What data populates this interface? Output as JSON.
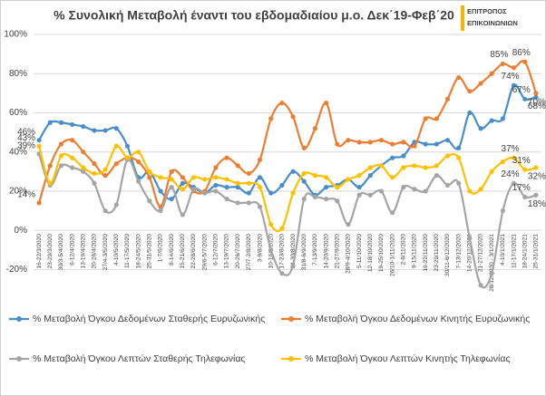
{
  "chart_data": {
    "type": "line",
    "title": "% Συνολική Μεταβολή έναντι του εβδομαδιαίου μ.ο. Δεκ΄19-Φεβ΄20",
    "logo": {
      "line1": "ΕΠΙΤΡΟΠΟΣ",
      "line2": "ΕΠΙΚΟΙΝΩΝΙΩΝ"
    },
    "categories": [
      "16-22/3/2020",
      "23-29/3/2020",
      "30/3-5/4/2020",
      "6-12/4/2020",
      "13-19/4/2020",
      "20-26/4/2020",
      "27/4-3/5/2020",
      "4-10/5/2020",
      "11-17/5/2020",
      "18-24/5/2020",
      "25-31/5/2020",
      "1-7/6/2020",
      "8-14/6/2020",
      "15-21/6/2020",
      "22-28/6/2020",
      "29/6-5/7/2020",
      "6-12/7/2020",
      "13-19/7/2020",
      "20-26/7/2020",
      "27/7-2/8/2020",
      "3-9/8/2020",
      "10-16/8/2020",
      "17-23/8/2020",
      "24-30/8/2020",
      "31/8-6/9/2020",
      "7-13/9/2020",
      "14-20/9/2020",
      "21-27/9/2020",
      "28/9-4/10/2020",
      "5-11/10/2020",
      "12-18/10/2020",
      "19-25/10/2020",
      "26/10-1/11/2020",
      "2-8/11/2020",
      "9-15/11/2020",
      "16-22/11/2020",
      "23-29/11/2020",
      "30/11-6/12/2020",
      "7-13/12/2020",
      "14-20/12/2020",
      "21-27/12/2020",
      "28/12/2020 - 3/1/2021",
      "4-10/1/2021",
      "11-17/1/2021",
      "18-24/1/2021",
      "25-31/1/2021"
    ],
    "series": [
      {
        "name": "% Μεταβολή Όγκου Δεδομένων Σταθερής Ευρυζωνικής",
        "color": "#4a8ec9",
        "values": [
          46,
          55,
          55,
          54,
          53,
          51,
          51,
          52,
          43,
          27,
          30,
          20,
          16,
          24,
          22,
          19,
          23,
          22,
          22,
          19,
          27,
          19,
          23,
          30,
          25,
          18,
          22,
          23,
          26,
          22,
          28,
          33,
          37,
          38,
          45,
          44,
          44,
          46,
          42,
          60,
          52,
          56,
          57,
          74,
          67,
          68
        ],
        "value_labels": [
          "46%",
          null,
          null,
          null,
          null,
          null,
          null,
          null,
          null,
          null,
          null,
          null,
          null,
          null,
          null,
          null,
          null,
          null,
          null,
          null,
          null,
          null,
          null,
          null,
          null,
          null,
          null,
          null,
          null,
          null,
          null,
          null,
          null,
          null,
          null,
          null,
          null,
          null,
          null,
          null,
          null,
          null,
          null,
          "74%",
          "67%",
          "68%"
        ]
      },
      {
        "name": "% Μεταβολή Όγκου Δεδομένων Κινητής Ευρυζωνικής",
        "color": "#ed7d31",
        "values": [
          14,
          33,
          44,
          46,
          40,
          34,
          28,
          34,
          37,
          35,
          27,
          12,
          30,
          27,
          20,
          20,
          32,
          37,
          33,
          29,
          36,
          57,
          65,
          58,
          42,
          52,
          65,
          44,
          46,
          45,
          45,
          46,
          44,
          45,
          43,
          57,
          57,
          67,
          78,
          71,
          75,
          80,
          85,
          83,
          86,
          70
        ],
        "value_labels": [
          "14%",
          null,
          null,
          null,
          null,
          null,
          null,
          null,
          null,
          null,
          null,
          null,
          null,
          null,
          null,
          null,
          null,
          null,
          null,
          null,
          null,
          null,
          null,
          null,
          null,
          null,
          null,
          null,
          null,
          null,
          null,
          null,
          null,
          null,
          null,
          null,
          null,
          null,
          null,
          null,
          null,
          null,
          "85%",
          null,
          "86%",
          "70%"
        ]
      },
      {
        "name": "% Μεταβολή Όγκου Λεπτών Σταθερής Τηλεφωνίας",
        "color": "#a5a5a5",
        "values": [
          39,
          23,
          33,
          32,
          30,
          24,
          10,
          13,
          36,
          25,
          15,
          10,
          22,
          8,
          21,
          19,
          20,
          16,
          14,
          14,
          12,
          -10,
          -22,
          -18,
          16,
          17,
          16,
          15,
          3,
          18,
          18,
          20,
          9,
          22,
          21,
          20,
          28,
          23,
          24,
          -4,
          -28,
          -22,
          10,
          24,
          17,
          18
        ],
        "value_labels": [
          "39%",
          null,
          null,
          null,
          null,
          null,
          null,
          null,
          null,
          null,
          null,
          null,
          null,
          null,
          null,
          null,
          null,
          null,
          null,
          null,
          null,
          null,
          null,
          null,
          null,
          null,
          null,
          null,
          null,
          null,
          null,
          null,
          null,
          null,
          null,
          null,
          null,
          null,
          null,
          null,
          null,
          null,
          null,
          "24%",
          "17%",
          "18%"
        ]
      },
      {
        "name": "% Μεταβολή Όγκου Λεπτών Κινητής Τηλεφωνίας",
        "color": "#ffc000",
        "values": [
          43,
          24,
          38,
          37,
          32,
          29,
          31,
          43,
          37,
          40,
          30,
          27,
          26,
          21,
          27,
          26,
          27,
          26,
          24,
          24,
          22,
          3,
          1,
          19,
          29,
          28,
          27,
          22,
          26,
          28,
          32,
          33,
          27,
          32,
          33,
          32,
          33,
          38,
          37,
          20,
          21,
          30,
          35,
          37,
          31,
          32
        ],
        "value_labels": [
          "43%",
          null,
          null,
          null,
          null,
          null,
          null,
          null,
          null,
          null,
          null,
          null,
          null,
          null,
          null,
          null,
          null,
          null,
          null,
          null,
          null,
          null,
          null,
          null,
          null,
          null,
          null,
          null,
          null,
          null,
          null,
          null,
          null,
          null,
          null,
          null,
          null,
          null,
          null,
          null,
          null,
          null,
          null,
          "37%",
          "31%",
          "32%"
        ]
      }
    ],
    "ylim": [
      -30,
      100
    ],
    "yticks": [
      {
        "value": -20,
        "label": "-20%"
      },
      {
        "value": 0,
        "label": "0%"
      },
      {
        "value": 20,
        "label": "20%"
      },
      {
        "value": 40,
        "label": "40%"
      },
      {
        "value": 60,
        "label": "60%"
      },
      {
        "value": 80,
        "label": "80%"
      },
      {
        "value": 100,
        "label": "100%"
      }
    ],
    "grid": true,
    "legend": "bottom"
  }
}
